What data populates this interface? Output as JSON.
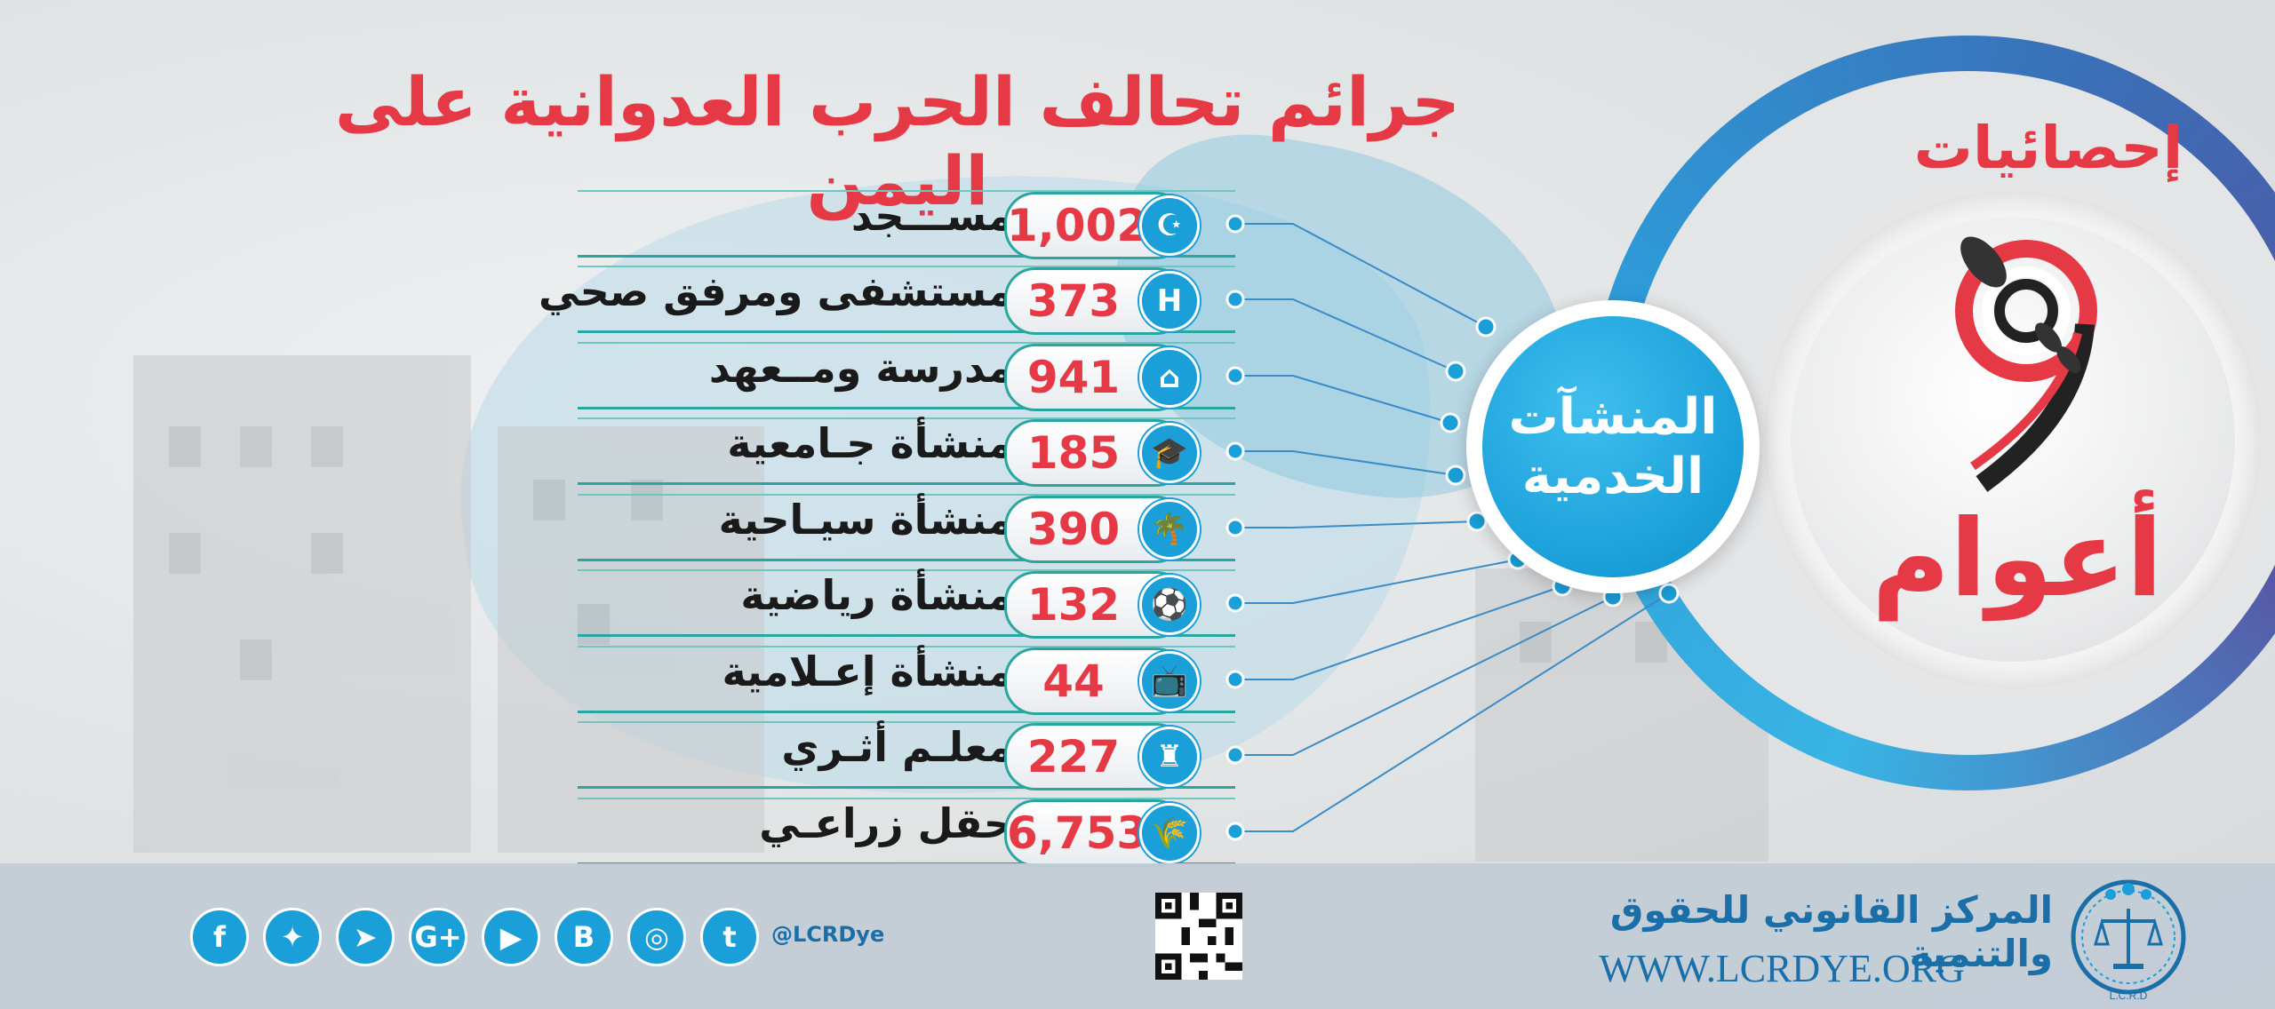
{
  "title": "جرائم تحالف الحرب العدوانية على اليمن",
  "badge": {
    "stats_label": "إحصائيات",
    "years_label": "أعوام",
    "number": "9"
  },
  "hub": {
    "line1": "المنشآت",
    "line2": "الخدمية"
  },
  "items": [
    {
      "label": "مســـجد",
      "value": "1,002",
      "icon": "mosque-icon",
      "glyph": "☪"
    },
    {
      "label": "مستشفى ومرفق صحي",
      "value": "373",
      "icon": "hospital-icon",
      "glyph": "H"
    },
    {
      "label": "مدرسة ومــعهد",
      "value": "941",
      "icon": "school-icon",
      "glyph": "⌂"
    },
    {
      "label": "منشأة جـامعية",
      "value": "185",
      "icon": "graduation-cap-icon",
      "glyph": "🎓"
    },
    {
      "label": "منشأة سيـاحية",
      "value": "390",
      "icon": "palm-tree-icon",
      "glyph": "🌴"
    },
    {
      "label": "منشأة رياضية",
      "value": "132",
      "icon": "stadium-icon",
      "glyph": "⚽"
    },
    {
      "label": "منشأة إعـلامية",
      "value": "44",
      "icon": "television-icon",
      "glyph": "📺"
    },
    {
      "label": "معلـم أثـري",
      "value": "227",
      "icon": "castle-icon",
      "glyph": "♜"
    },
    {
      "label": "حقل زراعـي",
      "value": "6,753",
      "icon": "wheat-icon",
      "glyph": "🌾"
    }
  ],
  "footer": {
    "handle": "@LCRDye",
    "org_name": "المركز القانوني للحقوق والتنمية",
    "url": "WWW.LCRDYE.ORG",
    "logo_text": "L.C.R.D",
    "social": [
      {
        "icon": "tumblr-icon",
        "glyph": "t"
      },
      {
        "icon": "instagram-icon",
        "glyph": "◎"
      },
      {
        "icon": "blogger-icon",
        "glyph": "B"
      },
      {
        "icon": "youtube-icon",
        "glyph": "▶"
      },
      {
        "icon": "google-plus-icon",
        "glyph": "G+"
      },
      {
        "icon": "telegram-icon",
        "glyph": "➤"
      },
      {
        "icon": "twitter-icon",
        "glyph": "✦"
      },
      {
        "icon": "facebook-icon",
        "glyph": "f"
      }
    ]
  },
  "colors": {
    "accent_red": "#e63946",
    "accent_blue": "#1a9fd9",
    "row_teal": "#2aa6a0",
    "footer_blue": "#1a6fa8"
  }
}
